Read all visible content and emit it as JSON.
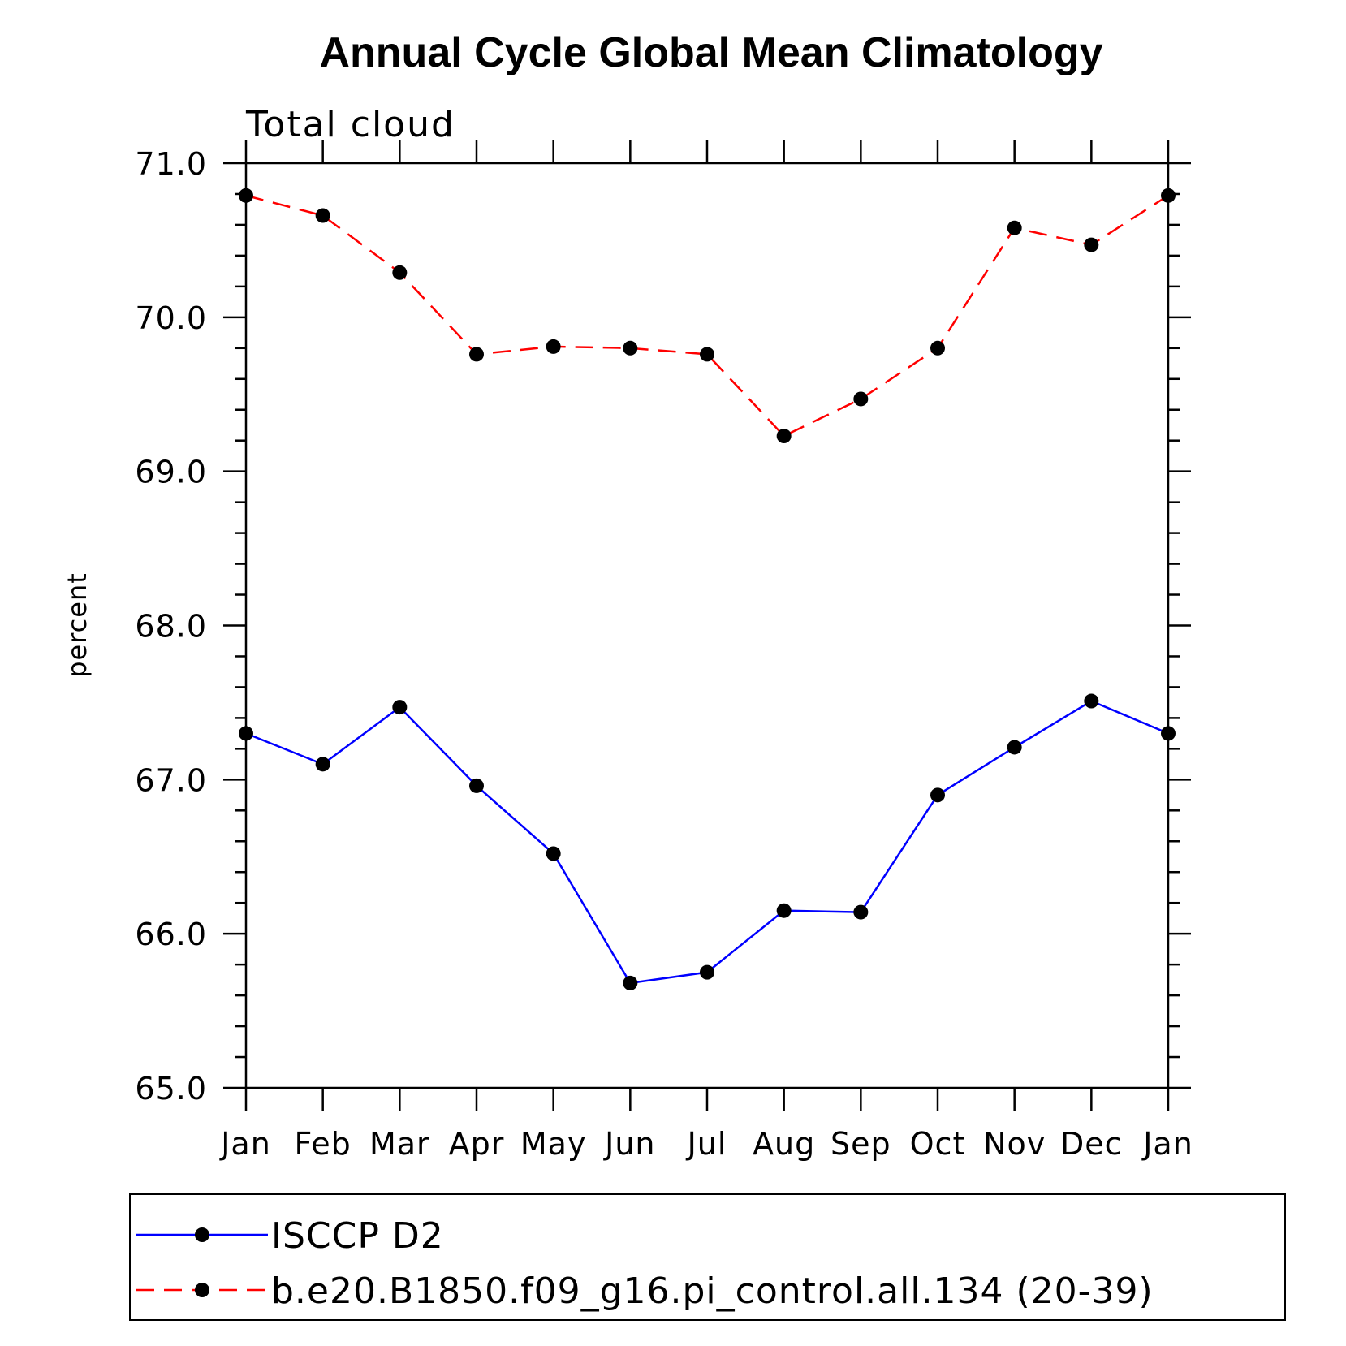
{
  "chart_data": {
    "type": "line",
    "title": "Annual Cycle Global Mean Climatology",
    "subtitle": "Total cloud",
    "xlabel": "",
    "ylabel": "percent",
    "categories": [
      "Jan",
      "Feb",
      "Mar",
      "Apr",
      "May",
      "Jun",
      "Jul",
      "Aug",
      "Sep",
      "Oct",
      "Nov",
      "Dec",
      "Jan"
    ],
    "ylim": [
      65.0,
      71.0
    ],
    "yticks": [
      "65.0",
      "66.0",
      "67.0",
      "68.0",
      "69.0",
      "70.0",
      "71.0"
    ],
    "y_minor_step": 0.2,
    "grid": false,
    "legend_position": "bottom",
    "series": [
      {
        "name": "ISCCP D2",
        "color": "#0000ff",
        "line_style": "solid",
        "marker": "filled-circle",
        "values": [
          67.3,
          67.1,
          67.47,
          66.96,
          66.52,
          65.68,
          65.75,
          66.15,
          66.14,
          66.9,
          67.21,
          67.51,
          67.3
        ]
      },
      {
        "name": "b.e20.B1850.f09_g16.pi_control.all.134 (20-39)",
        "color": "#ff0000",
        "line_style": "dashed",
        "marker": "filled-circle",
        "values": [
          70.79,
          70.66,
          70.29,
          69.76,
          69.81,
          69.8,
          69.76,
          69.23,
          69.47,
          69.8,
          70.58,
          70.47,
          70.79
        ]
      }
    ]
  }
}
